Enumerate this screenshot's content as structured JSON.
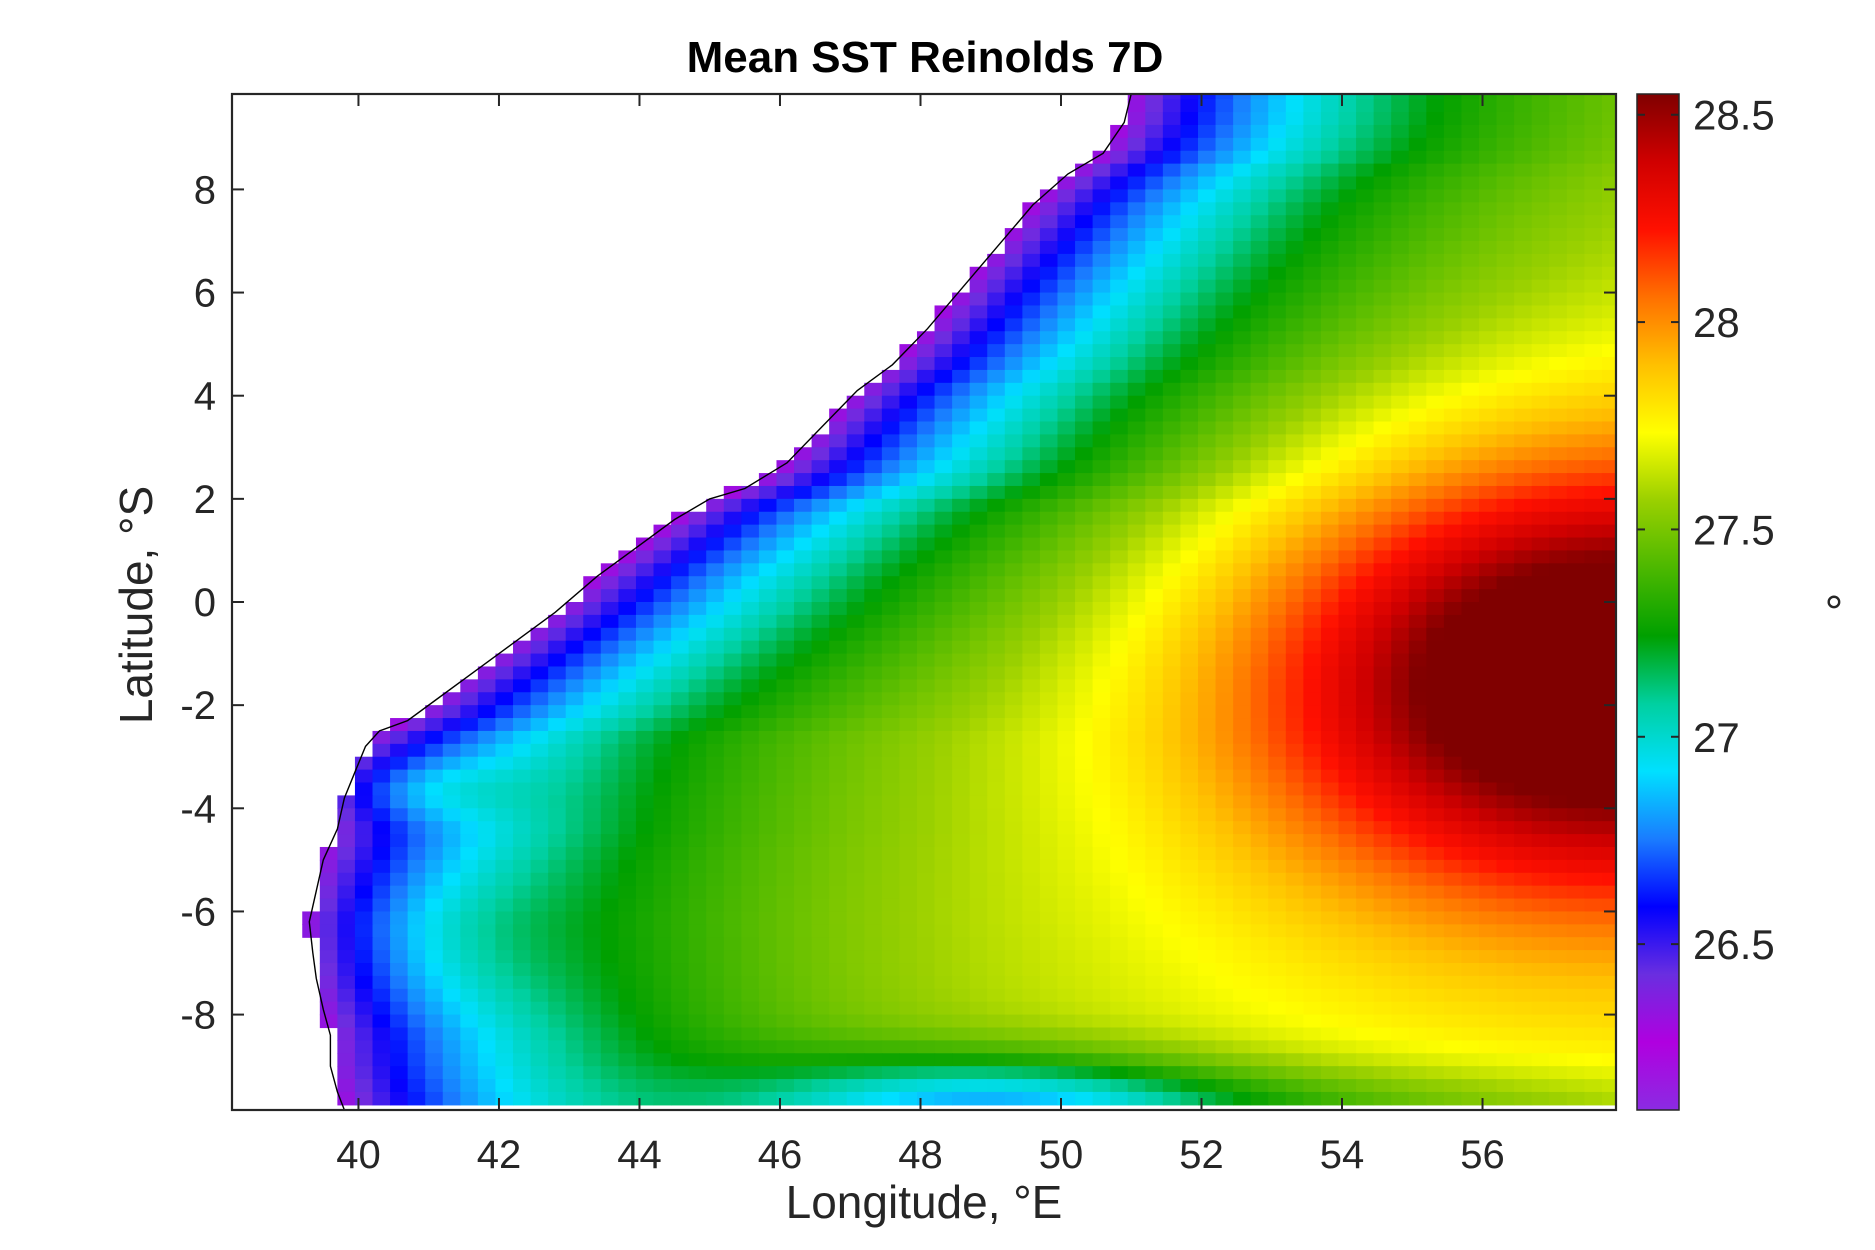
{
  "chart_data": {
    "type": "heatmap",
    "title": "Mean SST Reinolds 7D",
    "xlabel": "Longitude, °E",
    "ylabel": "Latitude, °S",
    "xlim": [
      38.2,
      57.9
    ],
    "ylim": [
      -9.85,
      9.85
    ],
    "xticks": [
      40,
      42,
      44,
      46,
      48,
      50,
      52,
      54,
      56
    ],
    "xtick_labels": [
      "40",
      "42",
      "44",
      "46",
      "48",
      "50",
      "52",
      "54",
      "56"
    ],
    "yticks": [
      8,
      6,
      4,
      2,
      0,
      -2,
      -4,
      -6,
      -8
    ],
    "ytick_labels": [
      "8",
      "6",
      "4",
      "2",
      "0",
      "-2",
      "-4",
      "-6",
      "-8"
    ],
    "colorbar": {
      "label": "°",
      "range": [
        26.1,
        28.55
      ],
      "ticks": [
        28.5,
        28,
        27.5,
        27,
        26.5
      ],
      "tick_labels": [
        "28.5",
        "28",
        "27.5",
        "27",
        "26.5"
      ],
      "colormap": [
        "#8b2be2",
        "#b000e0",
        "#6a2ee0",
        "#0000ff",
        "#1a7cff",
        "#00e0ff",
        "#00d0a0",
        "#00a000",
        "#4cb800",
        "#9ad000",
        "#ffff00",
        "#ffc000",
        "#ff7000",
        "#ff1000",
        "#d00000",
        "#800000"
      ]
    },
    "colors": {
      "land": "#ffffff",
      "coastline": "#000000",
      "frame": "#262626"
    }
  }
}
